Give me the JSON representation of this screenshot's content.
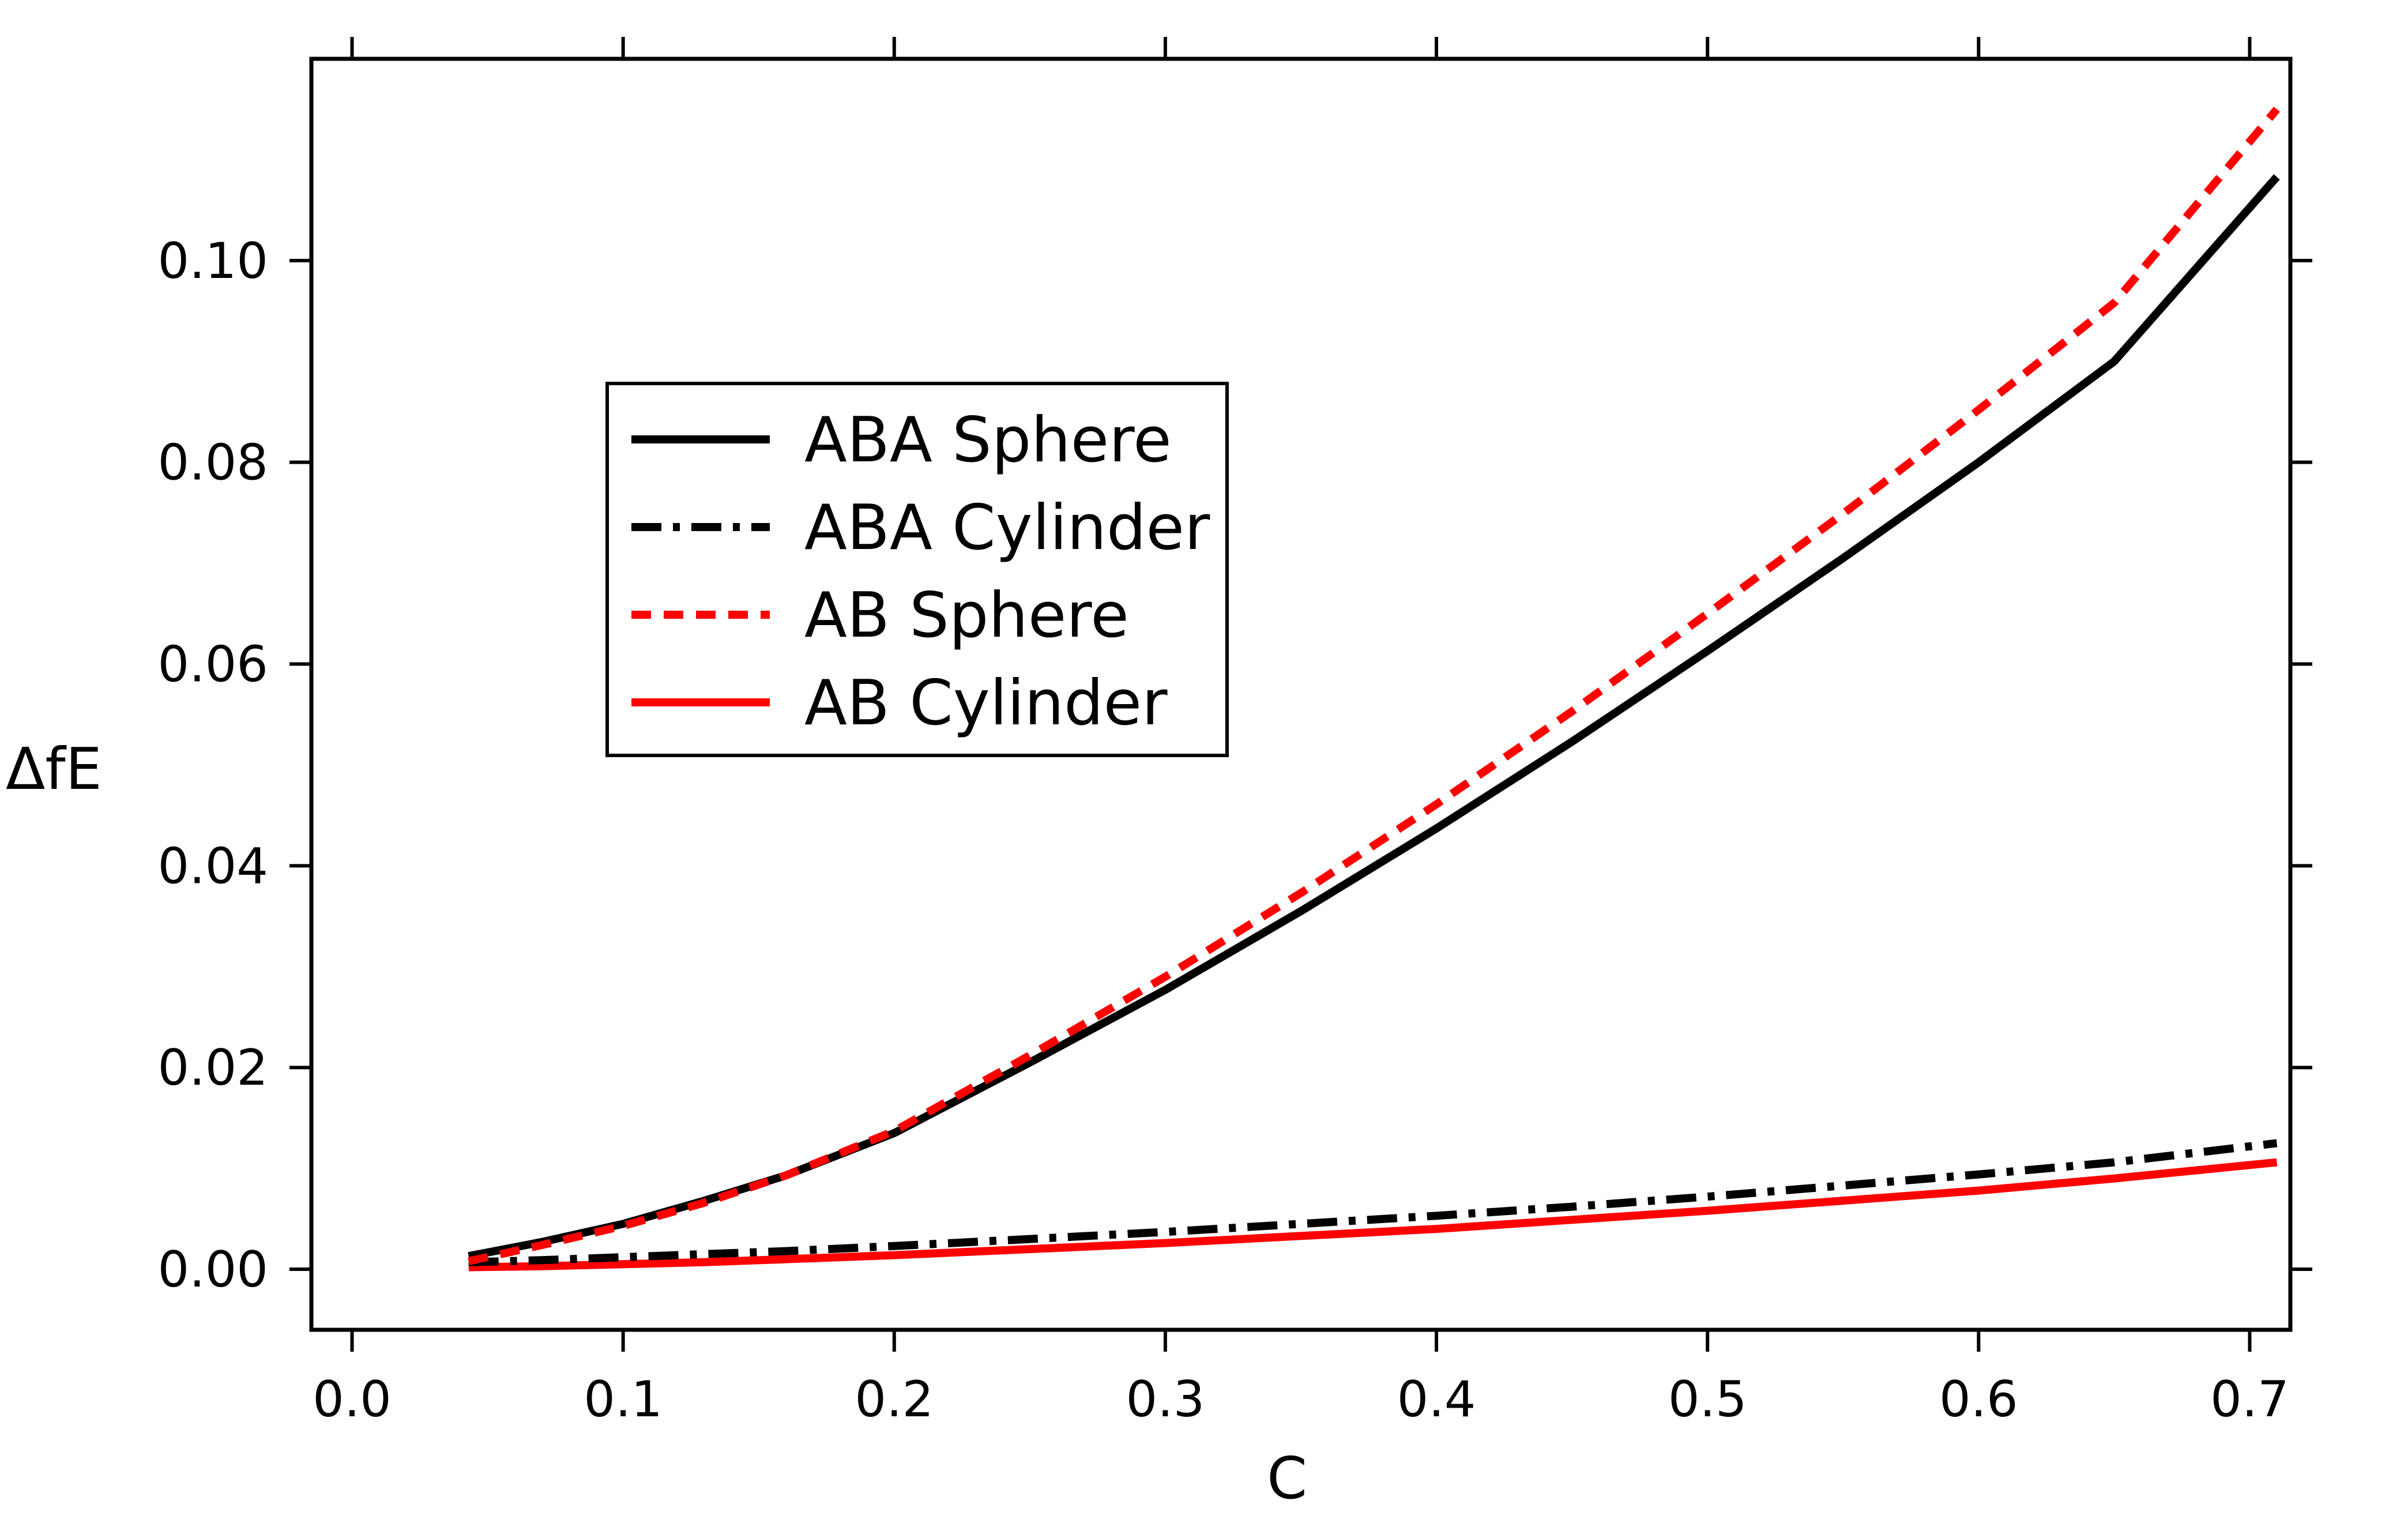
{
  "chart_data": {
    "type": "line",
    "xlabel": "C",
    "ylabel": "ΔfE",
    "xlim": [
      -0.015,
      0.715
    ],
    "ylim": [
      -0.006,
      0.12
    ],
    "xticks": [
      0.0,
      0.1,
      0.2,
      0.3,
      0.4,
      0.5,
      0.6,
      0.7
    ],
    "xtick_labels": [
      "0.0",
      "0.1",
      "0.2",
      "0.3",
      "0.4",
      "0.5",
      "0.6",
      "0.7"
    ],
    "yticks": [
      0.0,
      0.02,
      0.04,
      0.06,
      0.08,
      0.1
    ],
    "ytick_labels": [
      "0.00",
      "0.02",
      "0.04",
      "0.06",
      "0.08",
      "0.10"
    ],
    "grid": false,
    "legend_position": "upper-left",
    "x": [
      0.043,
      0.07,
      0.1,
      0.13,
      0.16,
      0.2,
      0.25,
      0.3,
      0.35,
      0.4,
      0.45,
      0.5,
      0.55,
      0.6,
      0.65,
      0.71
    ],
    "series": [
      {
        "name": "ABA Sphere",
        "color": "#000000",
        "dash": "solid",
        "values": [
          0.0013,
          0.0027,
          0.0045,
          0.0068,
          0.0093,
          0.0135,
          0.0205,
          0.0277,
          0.0355,
          0.0437,
          0.0523,
          0.0613,
          0.0705,
          0.08,
          0.09,
          0.1083
        ]
      },
      {
        "name": "ABA Cylinder",
        "color": "#000000",
        "dash": "dashdot",
        "values": [
          0.0007,
          0.0009,
          0.0012,
          0.0015,
          0.0018,
          0.0023,
          0.003,
          0.0037,
          0.0045,
          0.0053,
          0.0062,
          0.0072,
          0.0083,
          0.0094,
          0.0106,
          0.0125
        ]
      },
      {
        "name": "AB Sphere",
        "color": "#ff0000",
        "dash": "dashed",
        "values": [
          0.0008,
          0.0024,
          0.0043,
          0.0066,
          0.0093,
          0.0137,
          0.0212,
          0.029,
          0.0373,
          0.0461,
          0.0553,
          0.065,
          0.0749,
          0.0852,
          0.0958,
          0.115
        ]
      },
      {
        "name": "AB Cylinder",
        "color": "#ff0000",
        "dash": "solid",
        "values": [
          0.0002,
          0.0003,
          0.0005,
          0.0007,
          0.001,
          0.0014,
          0.002,
          0.0026,
          0.0033,
          0.004,
          0.0049,
          0.0058,
          0.0068,
          0.0078,
          0.009,
          0.0106
        ]
      }
    ]
  }
}
